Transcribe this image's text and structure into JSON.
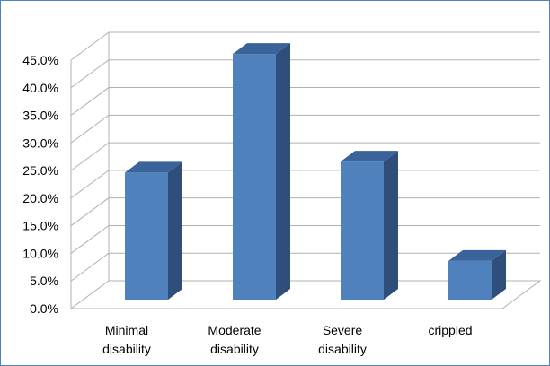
{
  "chart_data": {
    "type": "bar",
    "style": "3d-column",
    "categories": [
      "Minimal\ndisability",
      "Moderate\ndisability",
      "Severe\ndisability",
      "crippled"
    ],
    "values": [
      23.0,
      44.5,
      25.0,
      7.0
    ],
    "y_ticks": [
      "0.0%",
      "5.0%",
      "10.0%",
      "15.0%",
      "20.0%",
      "25.0%",
      "30.0%",
      "35.0%",
      "40.0%",
      "45.0%"
    ],
    "ylim": [
      0,
      45
    ],
    "grid": true,
    "legend": "none",
    "colors": {
      "bar_front": "#4f81bd",
      "bar_side": "#2f4f7a",
      "bar_top": "#3a6399",
      "grid": "#b0b0b0",
      "frame": "#4f81bd"
    }
  }
}
